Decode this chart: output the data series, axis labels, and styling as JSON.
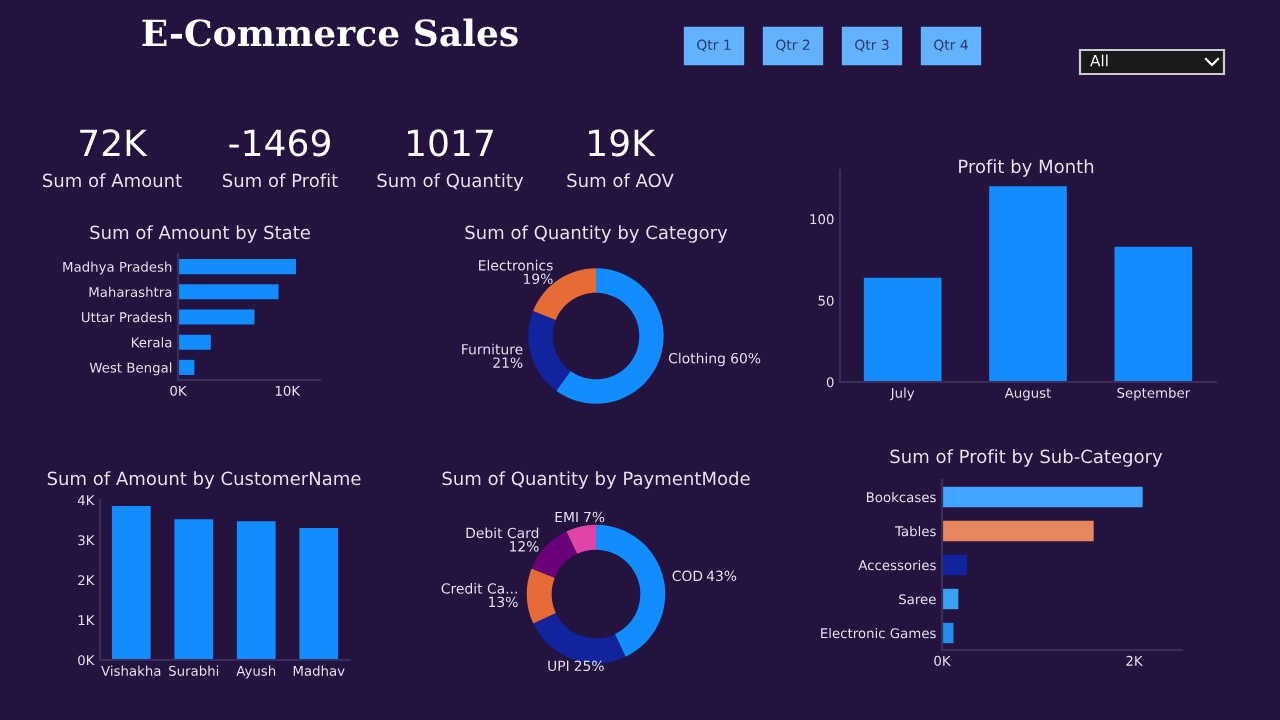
{
  "chart_data": [
    {
      "type": "other",
      "title": "E-Commerce Sales",
      "annotations": [
        "Qtr 1",
        "Qtr 2",
        "Qtr 3",
        "Qtr 4",
        "All"
      ]
    },
    {
      "type": "other",
      "annotations": [
        "72K",
        "Sum of Amount",
        "-1469",
        "Sum of Profit",
        "1017",
        "Sum of Quantity",
        "19K",
        "Sum of AOV"
      ]
    },
    {
      "type": "bar",
      "title": "Sum of Amount by State",
      "orientation": "horizontal",
      "categories": [
        "Madhya Pradesh",
        "Maharashtra",
        "Uttar Pradesh",
        "Kerala",
        "West Bengal"
      ],
      "values": [
        10800,
        9200,
        7000,
        3000,
        1500
      ],
      "color": "#118dff",
      "xlim": [
        0,
        13000
      ],
      "xticks": [
        {
          "value": 0,
          "label": "0K"
        },
        {
          "value": 10000,
          "label": "10K"
        }
      ]
    },
    {
      "type": "donut",
      "title": "Sum of Quantity by Category",
      "categories": [
        "Clothing",
        "Furniture",
        "Electronics"
      ],
      "values": [
        60,
        21,
        19
      ],
      "colors": [
        "#118dff",
        "#12239e",
        "#e66c37"
      ],
      "value_labels": [
        "60%",
        "21%",
        "19%"
      ]
    },
    {
      "type": "bar",
      "title": "Profit by Month",
      "categories": [
        "July",
        "August",
        "September"
      ],
      "values": [
        64,
        120,
        83
      ],
      "color": "#118dff",
      "ylim": [
        0,
        130
      ],
      "yticks": [
        0,
        50,
        100
      ]
    },
    {
      "type": "bar",
      "title": "Sum of Amount by CustomerName",
      "categories": [
        "Vishakha",
        "Surabhi",
        "Ayush",
        "Madhav"
      ],
      "values": [
        3850,
        3520,
        3470,
        3300
      ],
      "color": "#118dff",
      "ylim": [
        0,
        4000
      ],
      "yticks": [
        {
          "value": 0,
          "label": "0K"
        },
        {
          "value": 1000,
          "label": "1K"
        },
        {
          "value": 2000,
          "label": "2K"
        },
        {
          "value": 3000,
          "label": "3K"
        },
        {
          "value": 4000,
          "label": "4K"
        }
      ]
    },
    {
      "type": "donut",
      "title": "Sum of Quantity by PaymentMode",
      "categories": [
        "COD",
        "UPI",
        "Credit Ca...",
        "Debit Card",
        "EMI"
      ],
      "values": [
        43,
        25,
        13,
        12,
        7
      ],
      "colors": [
        "#118dff",
        "#12239e",
        "#e66c37",
        "#6b007b",
        "#e044a7"
      ],
      "value_labels": [
        "43%",
        "25%",
        "13%",
        "12%",
        "7%"
      ]
    },
    {
      "type": "bar",
      "title": "Sum of Profit by Sub-Category",
      "orientation": "horizontal",
      "categories": [
        "Bookcases",
        "Tables",
        "Accessories",
        "Saree",
        "Electronic Games"
      ],
      "values": [
        2090,
        1580,
        260,
        170,
        120
      ],
      "colors": [
        "#41a4ff",
        "#e8875e",
        "#12239e",
        "#3aa0f5",
        "#1f8fef"
      ],
      "xlim": [
        0,
        2500
      ],
      "xticks": [
        {
          "value": 0,
          "label": "0K"
        },
        {
          "value": 2000,
          "label": "2K"
        }
      ]
    }
  ]
}
